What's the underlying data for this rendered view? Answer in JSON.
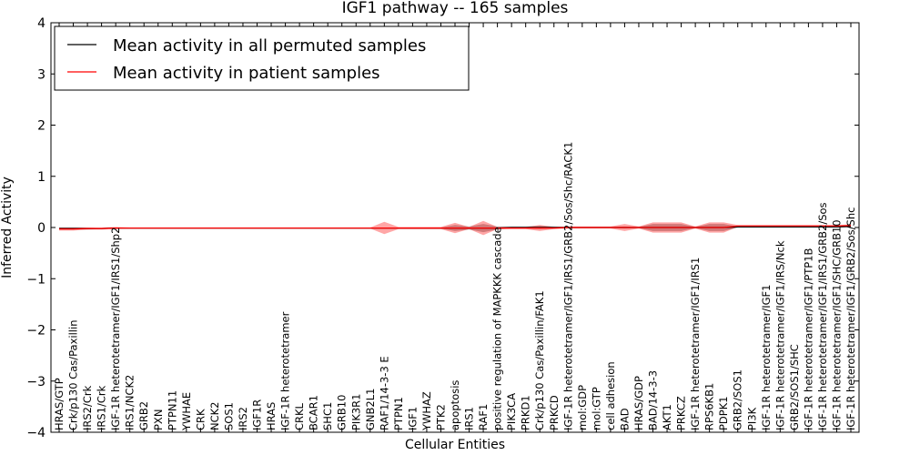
{
  "chart_data": {
    "type": "line",
    "title": "IGF1 pathway -- 165 samples",
    "xlabel": "Cellular Entities",
    "ylabel": "Inferred Activity",
    "ylim": [
      -4,
      4
    ],
    "yticks": [
      "−4",
      "−3",
      "−2",
      "−1",
      "0",
      "1",
      "2",
      "3",
      "4"
    ],
    "legend_position": "top-left",
    "categories": [
      "HRAS/GTP",
      "Crk/p130 Cas/Paxillin",
      "IRS2/Crk",
      "IRS1/Crk",
      "IGF-1R heterotetramer/IGF1/IRS1/Shp2",
      "IRS1/NCK2",
      "GRB2",
      "PXN",
      "PTPN11",
      "YWHAE",
      "CRK",
      "NCK2",
      "SOS1",
      "IRS2",
      "IGF1R",
      "HRAS",
      "IGF-1R heterotetramer",
      "CRKL",
      "BCAR1",
      "SHC1",
      "GRB10",
      "PIK3R1",
      "GNB2L1",
      "RAF1/14-3-3 E",
      "PTPN1",
      "IGF1",
      "YWHAZ",
      "PTK2",
      "apoptosis",
      "IRS1",
      "RAF1",
      "positive regulation of MAPKKK cascade",
      "PIK3CA",
      "PRKD1",
      "Crk/p130 Cas/Paxillin/FAK1",
      "PRKCD",
      "IGF-1R heterotetramer/IGF1/IRS1/GRB2/Sos/Shc/RACK1",
      "mol:GDP",
      "mol:GTP",
      "cell adhesion",
      "BAD",
      "HRAS/GDP",
      "BAD/14-3-3",
      "AKT1",
      "PRKCZ",
      "IGF-1R heterotetramer/IGF1/IRS1",
      "RPS6KB1",
      "PDPK1",
      "GRB2/SOS1",
      "PI3K",
      "IGF-1R heterotetramer/IGF1",
      "IGF-1R heterotetramer/IGF1/IRS/Nck",
      "GRB2/SOS1/SHC",
      "IGF-1R heterotetramer/IGF1/PTP1B",
      "IGF-1R heterotetramer/IGF1/IRS1/GRB2/Sos",
      "IGF-1R heterotetramer/IGF1/SHC/GRB10",
      "IGF-1R heterotetramer/IGF1/GRB2/Sos/Shc"
    ],
    "series": [
      {
        "name": "Mean activity in all permuted samples",
        "color": "#000000",
        "values": [
          -0.02,
          -0.02,
          -0.02,
          -0.02,
          -0.01,
          -0.01,
          -0.01,
          -0.01,
          -0.01,
          -0.01,
          -0.01,
          -0.01,
          -0.01,
          -0.01,
          -0.01,
          -0.01,
          -0.01,
          -0.01,
          -0.01,
          -0.01,
          -0.01,
          -0.01,
          -0.01,
          -0.01,
          -0.01,
          -0.01,
          -0.01,
          -0.01,
          -0.01,
          -0.01,
          -0.01,
          -0.01,
          0.0,
          0.0,
          0.0,
          0.0,
          0.0,
          0.0,
          0.0,
          0.0,
          0.0,
          0.0,
          0.0,
          0.0,
          0.0,
          0.0,
          0.0,
          0.0,
          0.01,
          0.01,
          0.01,
          0.01,
          0.01,
          0.01,
          0.01,
          0.01,
          0.02
        ],
        "band": [
          0.02,
          0.02,
          0.02,
          0.01,
          0.01,
          0.01,
          0.01,
          0.01,
          0.01,
          0.01,
          0.01,
          0.01,
          0.01,
          0.01,
          0.01,
          0.01,
          0.01,
          0.01,
          0.01,
          0.01,
          0.01,
          0.01,
          0.01,
          0.01,
          0.01,
          0.01,
          0.01,
          0.01,
          0.06,
          0.03,
          0.08,
          0.03,
          0.02,
          0.02,
          0.03,
          0.02,
          0.01,
          0.01,
          0.01,
          0.01,
          0.02,
          0.01,
          0.07,
          0.07,
          0.07,
          0.01,
          0.07,
          0.07,
          0.01,
          0.01,
          0.01,
          0.01,
          0.01,
          0.01,
          0.01,
          0.01,
          0.01
        ]
      },
      {
        "name": "Mean activity in patient samples",
        "color": "#ff0000",
        "values": [
          -0.03,
          -0.03,
          -0.02,
          -0.02,
          -0.01,
          -0.01,
          -0.01,
          -0.01,
          -0.01,
          -0.01,
          -0.01,
          -0.01,
          -0.01,
          -0.01,
          -0.01,
          -0.01,
          -0.01,
          -0.01,
          -0.01,
          -0.01,
          -0.01,
          -0.01,
          -0.01,
          -0.01,
          -0.01,
          -0.01,
          -0.01,
          -0.01,
          -0.01,
          -0.01,
          -0.01,
          -0.01,
          -0.01,
          -0.01,
          -0.01,
          -0.01,
          0.0,
          0.0,
          0.0,
          0.0,
          0.0,
          0.0,
          0.0,
          0.0,
          0.0,
          0.0,
          0.0,
          0.0,
          0.03,
          0.03,
          0.03,
          0.03,
          0.03,
          0.03,
          0.03,
          0.03,
          0.04
        ],
        "band": [
          0.03,
          0.03,
          0.02,
          0.02,
          0.02,
          0.01,
          0.01,
          0.01,
          0.01,
          0.01,
          0.01,
          0.01,
          0.01,
          0.01,
          0.01,
          0.01,
          0.01,
          0.01,
          0.01,
          0.01,
          0.01,
          0.01,
          0.01,
          0.12,
          0.02,
          0.02,
          0.02,
          0.02,
          0.1,
          0.02,
          0.14,
          0.02,
          0.02,
          0.02,
          0.06,
          0.02,
          0.02,
          0.02,
          0.02,
          0.02,
          0.07,
          0.02,
          0.1,
          0.1,
          0.1,
          0.02,
          0.1,
          0.1,
          0.02,
          0.02,
          0.02,
          0.02,
          0.02,
          0.02,
          0.02,
          0.02,
          0.02
        ]
      }
    ]
  }
}
